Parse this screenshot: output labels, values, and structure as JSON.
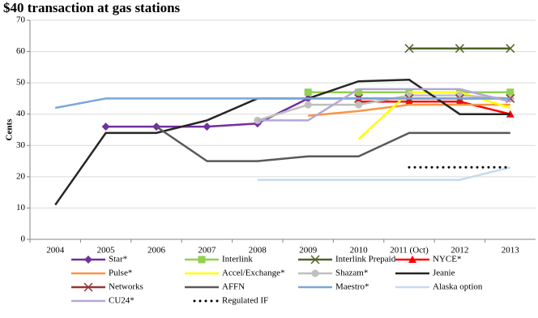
{
  "chart_data": {
    "type": "line",
    "title": "$40 transaction at gas stations",
    "y_label": "Cents",
    "categories": [
      "2004",
      "2005",
      "2006",
      "2007",
      "2008",
      "2009",
      "2010",
      "2011 (Oct)",
      "2012",
      "2013"
    ],
    "ylim": [
      0,
      70
    ],
    "yticks": [
      0,
      10,
      20,
      30,
      40,
      50,
      60,
      70
    ],
    "grid": true,
    "series": [
      {
        "name": "Star*",
        "color": "#7030a0",
        "marker": "diamond",
        "values": [
          null,
          36,
          36,
          36,
          37,
          45,
          45,
          45,
          45,
          45
        ]
      },
      {
        "name": "Interlink",
        "color": "#92d050",
        "marker": "square",
        "values": [
          null,
          null,
          null,
          null,
          null,
          47,
          47,
          47,
          47,
          47
        ]
      },
      {
        "name": "Interlink Prepaid",
        "color": "#4f6228",
        "marker": "x",
        "values": [
          null,
          null,
          null,
          null,
          null,
          null,
          null,
          61,
          61,
          61
        ]
      },
      {
        "name": "NYCE*",
        "color": "#ff0000",
        "marker": "triangle",
        "values": [
          null,
          null,
          null,
          null,
          null,
          null,
          44,
          44,
          44,
          40
        ]
      },
      {
        "name": "Pulse*",
        "color": "#f79646",
        "marker": "none",
        "values": [
          null,
          null,
          null,
          null,
          null,
          39.5,
          41,
          43,
          43,
          43
        ]
      },
      {
        "name": "Accel/Exchange*",
        "color": "#ffff00",
        "marker": "none",
        "values": [
          null,
          null,
          null,
          null,
          null,
          null,
          32,
          47,
          47,
          42
        ]
      },
      {
        "name": "Shazam*",
        "color": "#bfbfbf",
        "marker": "circle",
        "values": [
          null,
          null,
          null,
          null,
          38,
          43,
          43,
          46,
          46,
          45
        ]
      },
      {
        "name": "Jeanie",
        "color": "#262626",
        "marker": "none",
        "values": [
          11,
          34,
          34,
          38,
          45,
          45,
          50.5,
          51,
          40,
          40
        ]
      },
      {
        "name": "Networks",
        "color": "#953735",
        "marker": "x",
        "values": [
          null,
          null,
          null,
          null,
          null,
          null,
          45,
          45,
          45,
          45
        ]
      },
      {
        "name": "AFFN",
        "color": "#595959",
        "marker": "none",
        "values": [
          null,
          null,
          36,
          25,
          25,
          26.5,
          26.5,
          34,
          34,
          34
        ]
      },
      {
        "name": "Maestro*",
        "color": "#7ba7d9",
        "marker": "none",
        "values": [
          42,
          45,
          45,
          45,
          45,
          45,
          45,
          45,
          45,
          45
        ]
      },
      {
        "name": "Alaska option",
        "color": "#c6d9f1",
        "marker": "none",
        "values": [
          null,
          null,
          null,
          null,
          19,
          19,
          19,
          19,
          19,
          23
        ]
      },
      {
        "name": "CU24*",
        "color": "#b4a7d6",
        "marker": "none",
        "values": [
          null,
          null,
          null,
          null,
          38,
          38,
          48,
          48,
          48,
          44
        ]
      },
      {
        "name": "Regulated IF",
        "color": "#000000",
        "marker": "none",
        "dash": "dotted",
        "values": [
          null,
          null,
          null,
          null,
          null,
          null,
          null,
          23,
          23,
          23
        ]
      }
    ]
  }
}
